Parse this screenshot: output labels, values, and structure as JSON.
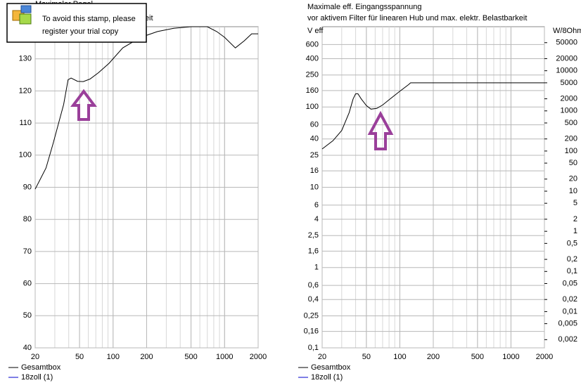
{
  "stamp": {
    "lines": [
      "To avoid this stamp, please",
      "register your trial copy"
    ]
  },
  "chart_data": [
    {
      "type": "line",
      "title": "Maximaler Pegel",
      "subtitle": "Hub und max. elektr. Belastbarkeit",
      "xlog": true,
      "grid": true,
      "x": [
        20,
        25,
        29,
        36,
        39.5,
        42,
        48,
        54,
        62,
        74,
        92,
        122,
        177,
        250,
        350,
        500,
        700,
        850,
        1000,
        1250,
        1500,
        1750,
        2000
      ],
      "xlim": [
        20,
        2000
      ],
      "xticks": [
        20,
        50,
        100,
        200,
        500,
        1000,
        2000
      ],
      "ylim": [
        40,
        140
      ],
      "yticks": [
        40,
        50,
        60,
        70,
        80,
        90,
        100,
        110,
        120,
        130
      ],
      "series": [
        {
          "name": "Gesamtbox",
          "color": "#000000",
          "values": [
            89.4,
            96,
            103.7,
            115.8,
            123.5,
            124,
            123,
            122.9,
            123.7,
            125.7,
            128.6,
            133.4,
            136.7,
            138.5,
            139.5,
            140,
            140,
            138.5,
            136.7,
            133.4,
            135.6,
            137.8,
            137.8
          ]
        },
        {
          "name": "18zoll (1)",
          "color": "#0000cc",
          "values": [
            null,
            null,
            null,
            null,
            null,
            null,
            null,
            null,
            null,
            null,
            null,
            null,
            null,
            null,
            null,
            null,
            null,
            null,
            null,
            null,
            null,
            null,
            null
          ]
        }
      ]
    },
    {
      "type": "line",
      "title": "Maximale eff. Eingangsspannung",
      "subtitle": "vor aktivem Filter für linearen Hub und max. elektr. Belastbarkeit",
      "xlog": true,
      "ylog": true,
      "grid": true,
      "y_label": "V eff",
      "y2_label": "W/8Ohm",
      "x": [
        20,
        25,
        30,
        35,
        38,
        40,
        42,
        45,
        50,
        55,
        62,
        70,
        80,
        100,
        120,
        125,
        2000
      ],
      "xlim": [
        20,
        2000
      ],
      "xticks": [
        20,
        50,
        100,
        200,
        500,
        1000,
        2000
      ],
      "ylim": [
        0.1,
        1000
      ],
      "yticks": [
        {
          "value": 0.1,
          "label": "0,1"
        },
        {
          "value": 0.16,
          "label": "0,16"
        },
        {
          "value": 0.25,
          "label": "0,25"
        },
        {
          "value": 0.4,
          "label": "0,4"
        },
        {
          "value": 0.6,
          "label": "0,6"
        },
        1,
        {
          "value": 1.6,
          "label": "1,6"
        },
        {
          "value": 2.5,
          "label": "2,5"
        },
        4,
        6,
        10,
        16,
        25,
        40,
        60,
        100,
        160,
        250,
        400,
        600
      ],
      "y2lim": [
        0.00125,
        125000
      ],
      "y2ticks": [
        {
          "value": 0.002,
          "label": "0,002"
        },
        {
          "value": 0.005,
          "label": "0,005"
        },
        {
          "value": 0.01,
          "label": "0,01"
        },
        {
          "value": 0.02,
          "label": "0,02"
        },
        {
          "value": 0.05,
          "label": "0,05"
        },
        {
          "value": 0.1,
          "label": "0,1"
        },
        {
          "value": 0.2,
          "label": "0,2"
        },
        {
          "value": 0.5,
          "label": "0,5"
        },
        1,
        2,
        5,
        10,
        20,
        50,
        100,
        200,
        500,
        1000,
        2000,
        5000,
        10000,
        20000,
        50000
      ],
      "series": [
        {
          "name": "Gesamtbox",
          "color": "#000000",
          "values": [
            30,
            38,
            51,
            85,
            126,
            146,
            146,
            126,
            104,
            94,
            96,
            106,
            123,
            157,
            190,
            200,
            200
          ]
        },
        {
          "name": "18zoll (1)",
          "color": "#0000cc",
          "values": [
            null,
            null,
            null,
            null,
            null,
            null,
            null,
            null,
            null,
            null,
            null,
            null,
            null,
            null,
            null,
            null,
            null
          ]
        }
      ]
    }
  ]
}
